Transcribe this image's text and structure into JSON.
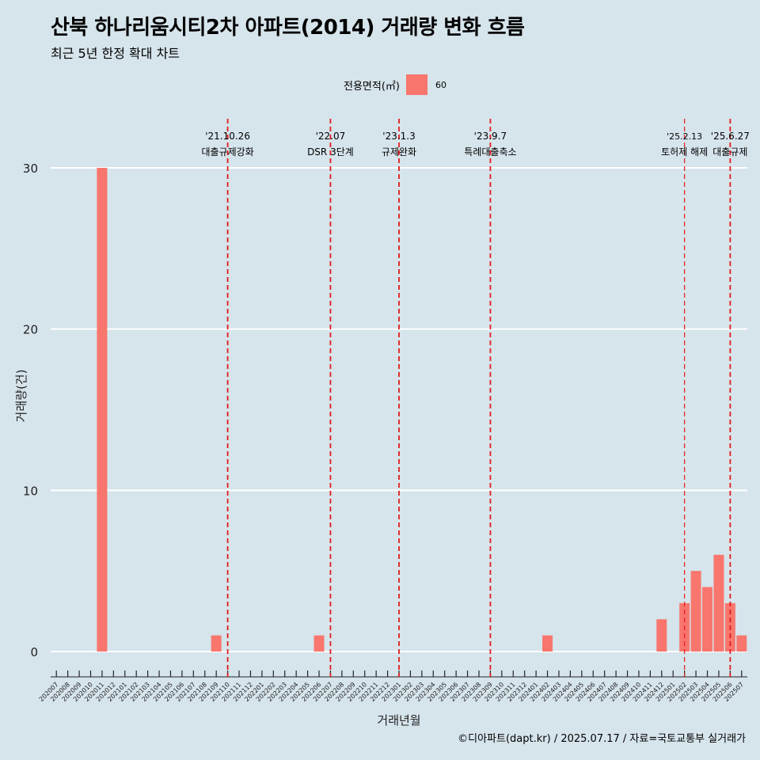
{
  "title": "산북 하나리움시티2차 아파트(2014) 거래량 변화 흐름",
  "subtitle": "최근 5년 한정 확대 차트",
  "caption": "©디아파트(dapt.kr) / 2025.07.17 / 자료=국토교통부 실거래가",
  "legend": {
    "title": "전용면적(㎡)",
    "label": "60",
    "color": "#f8766d"
  },
  "colors": {
    "background": "#d6e4eb",
    "bar": "#f8766d",
    "grid": "#ffffff",
    "event_line": "#e31a1c"
  },
  "chart_data": {
    "type": "bar",
    "xlabel": "거래년월",
    "ylabel": "거래량(건)",
    "ylim": [
      0,
      32
    ],
    "yticks": [
      0,
      10,
      20,
      30
    ],
    "categories": [
      "202007",
      "202008",
      "202009",
      "202010",
      "202011",
      "202012",
      "202101",
      "202102",
      "202103",
      "202104",
      "202105",
      "202106",
      "202107",
      "202108",
      "202109",
      "202110",
      "202111",
      "202112",
      "202201",
      "202202",
      "202203",
      "202204",
      "202205",
      "202206",
      "202207",
      "202208",
      "202209",
      "202210",
      "202211",
      "202212",
      "202301",
      "202302",
      "202303",
      "202304",
      "202305",
      "202306",
      "202307",
      "202308",
      "202309",
      "202310",
      "202311",
      "202312",
      "202401",
      "202402",
      "202403",
      "202404",
      "202405",
      "202406",
      "202407",
      "202408",
      "202409",
      "202410",
      "202411",
      "202412",
      "202501",
      "202502",
      "202503",
      "202504",
      "202505",
      "202506",
      "202507"
    ],
    "series": [
      {
        "name": "60",
        "values": [
          0,
          0,
          0,
          0,
          30,
          0,
          0,
          0,
          0,
          0,
          0,
          0,
          0,
          0,
          1,
          0,
          0,
          0,
          0,
          0,
          0,
          0,
          0,
          1,
          0,
          0,
          0,
          0,
          0,
          0,
          0,
          0,
          0,
          0,
          0,
          0,
          0,
          0,
          0,
          0,
          0,
          0,
          0,
          1,
          0,
          0,
          0,
          0,
          0,
          0,
          0,
          0,
          0,
          2,
          0,
          3,
          5,
          4,
          6,
          3,
          1
        ]
      }
    ],
    "events": [
      {
        "date": "'21.10.26",
        "label": "대출규제강화",
        "x": "202110"
      },
      {
        "date": "'22.07",
        "label": "DSR 3단계",
        "x": "202207"
      },
      {
        "date": "'23.1.3",
        "label": "규제완화",
        "x": "202301"
      },
      {
        "date": "'23.9.7",
        "label": "특례대출축소",
        "x": "202309"
      },
      {
        "date": "'25.2.13",
        "label": "토허제 해제",
        "x": "202502"
      },
      {
        "date": "'25.6.27",
        "label": "대출규제",
        "x": "202506"
      }
    ],
    "grid": true,
    "legend_position": "top"
  }
}
